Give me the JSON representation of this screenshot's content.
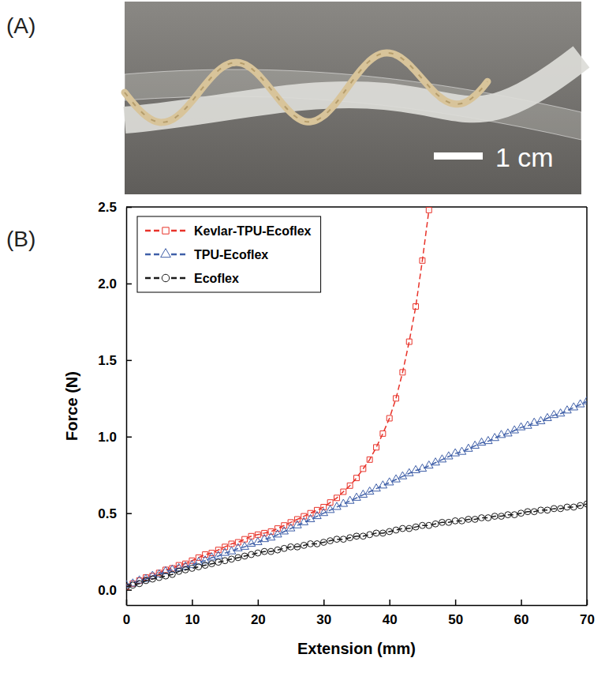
{
  "panel_labels": [
    "(A)",
    "(B)"
  ],
  "photo": {
    "scale_bar": "1 cm"
  },
  "chart_data": {
    "type": "line",
    "x_label": "Extension (mm)",
    "y_label": "Force (N)",
    "x": [
      0,
      1,
      2,
      3,
      4,
      5,
      6,
      7,
      8,
      9,
      10,
      11,
      12,
      13,
      14,
      15,
      16,
      17,
      18,
      19,
      20,
      21,
      22,
      23,
      24,
      25,
      26,
      27,
      28,
      29,
      30,
      31,
      32,
      33,
      34,
      35,
      36,
      37,
      38,
      39,
      40,
      41,
      42,
      43,
      44,
      45,
      46,
      47,
      48,
      49,
      50,
      51,
      52,
      53,
      54,
      55,
      56,
      57,
      58,
      59,
      60,
      61,
      62,
      63,
      64,
      65,
      66,
      67,
      68,
      69,
      70
    ],
    "xlim": [
      0,
      70
    ],
    "xticks": [
      0,
      10,
      20,
      30,
      40,
      50,
      60,
      70
    ],
    "ylim": [
      -0.1,
      2.5
    ],
    "yticks": [
      {
        "value": 0,
        "label": "0.0"
      },
      {
        "value": 0.5,
        "label": "0.5"
      },
      {
        "value": 1,
        "label": "1.0"
      },
      {
        "value": 1.5,
        "label": "1.5"
      },
      {
        "value": 2,
        "label": "2.0"
      },
      {
        "value": 2.5,
        "label": "2.5"
      }
    ],
    "legend": "upper left",
    "series": [
      {
        "name": "Kevlar-TPU-Ecoflex",
        "color": "#e8332a",
        "marker": "square",
        "line_style": "dash",
        "values": [
          0.02,
          0.04,
          0.06,
          0.08,
          0.09,
          0.11,
          0.13,
          0.14,
          0.16,
          0.17,
          0.19,
          0.21,
          0.23,
          0.24,
          0.26,
          0.28,
          0.3,
          0.31,
          0.33,
          0.35,
          0.36,
          0.37,
          0.38,
          0.4,
          0.42,
          0.44,
          0.46,
          0.48,
          0.5,
          0.52,
          0.54,
          0.57,
          0.6,
          0.64,
          0.68,
          0.73,
          0.79,
          0.85,
          0.93,
          1.02,
          1.12,
          1.25,
          1.42,
          1.62,
          1.85,
          2.15,
          2.48,
          null,
          null,
          null,
          null,
          null,
          null,
          null,
          null,
          null,
          null,
          null,
          null,
          null,
          null,
          null,
          null,
          null,
          null,
          null,
          null,
          null,
          null,
          null,
          null
        ]
      },
      {
        "name": "TPU-Ecoflex",
        "color": "#3f5fa8",
        "marker": "triangle",
        "line_style": "dash",
        "values": [
          0.03,
          0.04,
          0.06,
          0.07,
          0.09,
          0.1,
          0.12,
          0.13,
          0.14,
          0.15,
          0.16,
          0.18,
          0.19,
          0.21,
          0.22,
          0.24,
          0.25,
          0.27,
          0.28,
          0.3,
          0.31,
          0.33,
          0.34,
          0.36,
          0.38,
          0.4,
          0.42,
          0.44,
          0.46,
          0.48,
          0.5,
          0.52,
          0.54,
          0.56,
          0.58,
          0.6,
          0.62,
          0.64,
          0.66,
          0.68,
          0.7,
          0.72,
          0.74,
          0.76,
          0.78,
          0.79,
          0.81,
          0.83,
          0.85,
          0.87,
          0.89,
          0.9,
          0.92,
          0.94,
          0.96,
          0.97,
          0.99,
          1.01,
          1.02,
          1.04,
          1.06,
          1.07,
          1.09,
          1.1,
          1.12,
          1.14,
          1.15,
          1.17,
          1.19,
          1.21,
          1.23
        ]
      },
      {
        "name": "Ecoflex",
        "color": "#1a1a1a",
        "marker": "circle",
        "line_style": "dash",
        "values": [
          0.02,
          0.03,
          0.04,
          0.06,
          0.07,
          0.08,
          0.09,
          0.1,
          0.12,
          0.13,
          0.14,
          0.15,
          0.16,
          0.17,
          0.18,
          0.19,
          0.2,
          0.21,
          0.22,
          0.23,
          0.24,
          0.25,
          0.25,
          0.26,
          0.27,
          0.28,
          0.28,
          0.29,
          0.3,
          0.3,
          0.31,
          0.32,
          0.33,
          0.33,
          0.34,
          0.35,
          0.35,
          0.36,
          0.37,
          0.37,
          0.38,
          0.39,
          0.4,
          0.4,
          0.41,
          0.42,
          0.42,
          0.43,
          0.44,
          0.44,
          0.45,
          0.45,
          0.46,
          0.46,
          0.47,
          0.47,
          0.48,
          0.48,
          0.49,
          0.49,
          0.5,
          0.51,
          0.51,
          0.52,
          0.52,
          0.53,
          0.53,
          0.54,
          0.54,
          0.55,
          0.56
        ]
      }
    ]
  }
}
